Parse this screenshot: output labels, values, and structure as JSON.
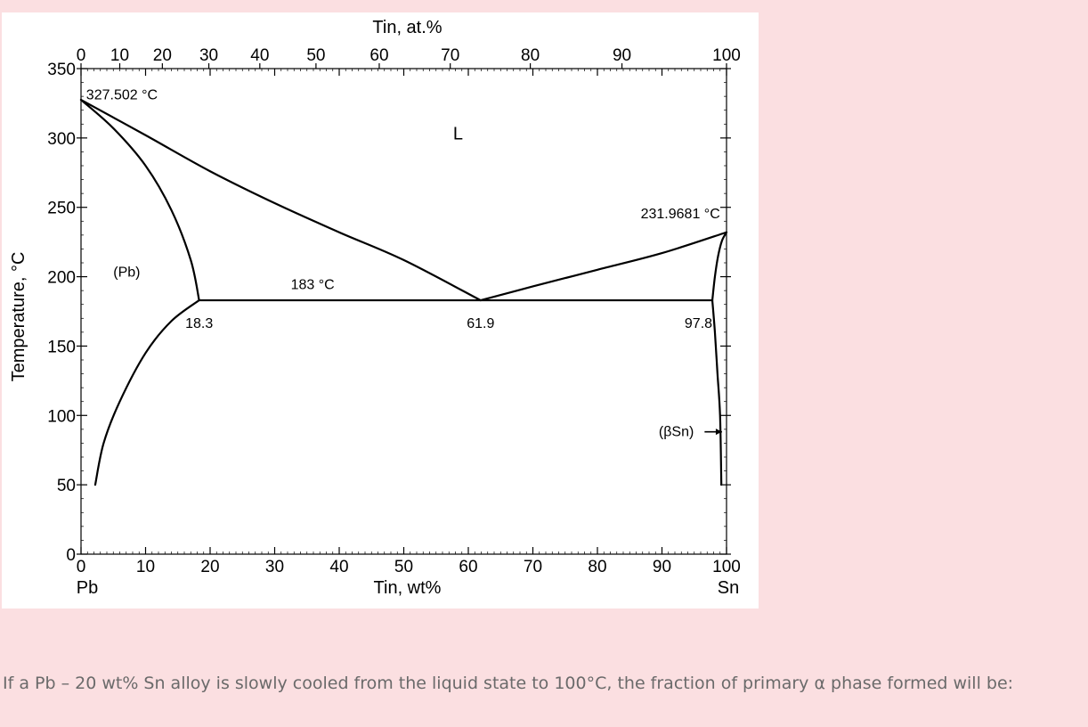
{
  "chart_data": {
    "type": "line",
    "title": "",
    "xlabel": "Tin, wt%",
    "x2label": "Tin, at.%",
    "ylabel": "Temperature, °C",
    "xlim": [
      0,
      100
    ],
    "ylim": [
      0,
      350
    ],
    "x_ticks": [
      "0",
      "10",
      "20",
      "30",
      "40",
      "50",
      "60",
      "70",
      "80",
      "90",
      "100"
    ],
    "x2_ticks": [
      {
        "label": "0",
        "wt": 0
      },
      {
        "label": "10",
        "wt": 6.0
      },
      {
        "label": "20",
        "wt": 12.6
      },
      {
        "label": "30",
        "wt": 19.8
      },
      {
        "label": "40",
        "wt": 27.7
      },
      {
        "label": "50",
        "wt": 36.4
      },
      {
        "label": "60",
        "wt": 46.2
      },
      {
        "label": "70",
        "wt": 57.2
      },
      {
        "label": "80",
        "wt": 69.6
      },
      {
        "label": "90",
        "wt": 83.8
      },
      {
        "label": "100",
        "wt": 100
      }
    ],
    "y_ticks": [
      "0",
      "50",
      "100",
      "150",
      "200",
      "250",
      "300",
      "350"
    ],
    "x_end_labels": {
      "left": "Pb",
      "right": "Sn"
    },
    "series": [
      {
        "id": "liquidus-left",
        "points": [
          [
            0,
            327.5
          ],
          [
            10,
            302
          ],
          [
            20,
            276
          ],
          [
            30,
            253
          ],
          [
            40,
            232
          ],
          [
            50,
            212
          ],
          [
            61.9,
            183
          ]
        ]
      },
      {
        "id": "liquidus-right",
        "points": [
          [
            61.9,
            183
          ],
          [
            70,
            193
          ],
          [
            80,
            205
          ],
          [
            90,
            217
          ],
          [
            100,
            232
          ]
        ]
      },
      {
        "id": "solidus-pb",
        "points": [
          [
            0,
            327.5
          ],
          [
            5,
            307
          ],
          [
            10,
            280
          ],
          [
            14,
            248
          ],
          [
            17,
            212
          ],
          [
            18.3,
            183
          ]
        ]
      },
      {
        "id": "solvus-pb",
        "points": [
          [
            18.3,
            183
          ],
          [
            14,
            168
          ],
          [
            10,
            145
          ],
          [
            6,
            110
          ],
          [
            3.5,
            80
          ],
          [
            2.2,
            50
          ]
        ]
      },
      {
        "id": "eutectic-line",
        "points": [
          [
            18.3,
            183
          ],
          [
            97.8,
            183
          ]
        ]
      },
      {
        "id": "solidus-sn",
        "points": [
          [
            100,
            232
          ],
          [
            99.3,
            226
          ],
          [
            98.7,
            215
          ],
          [
            98.2,
            200
          ],
          [
            97.8,
            183
          ]
        ]
      },
      {
        "id": "solvus-sn",
        "points": [
          [
            97.8,
            183
          ],
          [
            98.2,
            160
          ],
          [
            98.6,
            130
          ],
          [
            99.0,
            100
          ],
          [
            99.2,
            50
          ]
        ]
      }
    ],
    "annotations": [
      {
        "text": "327.502 °C",
        "x": 0.8,
        "y": 328
      },
      {
        "text": "L",
        "x": 58.4,
        "y": 299
      },
      {
        "text": "231.9681 °C",
        "x": 99,
        "y": 242,
        "anchor": "end"
      },
      {
        "text": "(Pb)",
        "x": 5,
        "y": 200
      },
      {
        "text": "183 °C",
        "x": 32.5,
        "y": 191
      },
      {
        "text": "18.3",
        "x": 18.3,
        "y": 163
      },
      {
        "text": "61.9",
        "x": 61.9,
        "y": 163
      },
      {
        "text": "97.8",
        "x": 97.8,
        "y": 163,
        "anchor": "end"
      },
      {
        "text": "(βSn)",
        "x": 89.5,
        "y": 85
      }
    ]
  },
  "question": "If a Pb – 20 wt% Sn alloy is slowly cooled from the liquid state to 100°C, the fraction of primary α phase formed will be:"
}
